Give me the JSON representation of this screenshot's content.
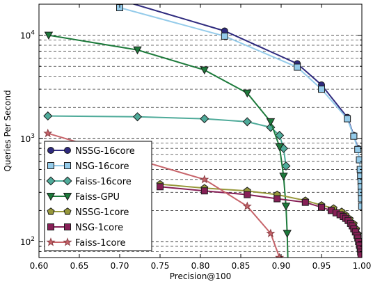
{
  "chart_data": {
    "type": "line",
    "xlabel": "Precision@100",
    "ylabel": "Queries Per Second",
    "xlim": [
      0.6,
      1.0
    ],
    "ylim": [
      70,
      20000
    ],
    "yscale": "log",
    "grid": "y-major-and-minor-dashed",
    "legend_position": "lower-left",
    "x_ticks": [
      "0.60",
      "0.65",
      "0.70",
      "0.75",
      "0.80",
      "0.85",
      "0.90",
      "0.95",
      "1.00"
    ],
    "y_ticks": [
      {
        "label_base": "10",
        "label_exp": "2",
        "value": 100
      },
      {
        "label_base": "10",
        "label_exp": "3",
        "value": 1000
      },
      {
        "label_base": "10",
        "label_exp": "4",
        "value": 10000
      }
    ],
    "series": [
      {
        "name": "NSSG-16core",
        "color": "#2e2a7e",
        "marker": "circle",
        "x": [
          0.7,
          0.83,
          0.92,
          0.95,
          0.982,
          0.99,
          0.995
        ],
        "y": [
          22000,
          11000,
          5300,
          3300,
          1600,
          1070,
          800
        ]
      },
      {
        "name": "NSG-16core",
        "color": "#94cbea",
        "marker": "square",
        "x": [
          0.7,
          0.83,
          0.92,
          0.95,
          0.982,
          0.99,
          0.995,
          0.997,
          0.998,
          0.9985,
          0.999,
          0.9992,
          0.9994,
          0.9996,
          0.9998
        ],
        "y": [
          18500,
          9800,
          4900,
          3000,
          1550,
          1050,
          780,
          620,
          500,
          430,
          380,
          340,
          300,
          260,
          220
        ]
      },
      {
        "name": "Faiss-16core",
        "color": "#4fab9a",
        "marker": "diamond",
        "x": [
          0.611,
          0.722,
          0.805,
          0.858,
          0.887,
          0.898,
          0.903,
          0.906
        ],
        "y": [
          1650,
          1620,
          1550,
          1450,
          1280,
          1070,
          800,
          540
        ]
      },
      {
        "name": "Faiss-GPU",
        "color": "#1d7a3b",
        "marker": "triangle-down",
        "x": [
          0.612,
          0.722,
          0.805,
          0.858,
          0.887,
          0.898,
          0.903,
          0.906,
          0.9075,
          0.9085
        ],
        "y": [
          10000,
          7200,
          4600,
          2750,
          1450,
          830,
          430,
          220,
          120,
          60
        ]
      },
      {
        "name": "NSSG-1core",
        "color": "#97983b",
        "marker": "pentagon",
        "x": [
          0.75,
          0.805,
          0.858,
          0.895,
          0.93,
          0.95,
          0.965,
          0.975,
          0.98,
          0.985,
          0.99,
          0.993,
          0.995,
          0.997
        ],
        "y": [
          360,
          330,
          310,
          285,
          250,
          225,
          210,
          195,
          180,
          165,
          148,
          132,
          118,
          100
        ]
      },
      {
        "name": "NSG-1core",
        "color": "#861f56",
        "marker": "square",
        "x": [
          0.75,
          0.805,
          0.858,
          0.895,
          0.93,
          0.95,
          0.962,
          0.968,
          0.973,
          0.977,
          0.98,
          0.983,
          0.986,
          0.988,
          0.99,
          0.992,
          0.994,
          0.995,
          0.996,
          0.997,
          0.998,
          0.9985,
          0.999
        ],
        "y": [
          340,
          310,
          285,
          260,
          240,
          215,
          200,
          190,
          182,
          175,
          168,
          160,
          150,
          142,
          133,
          124,
          115,
          108,
          100,
          92,
          85,
          79,
          74
        ]
      },
      {
        "name": "Faiss-1core",
        "color": "#c7646a",
        "marker": "star",
        "x": [
          0.611,
          0.722,
          0.805,
          0.858,
          0.887,
          0.898
        ],
        "y": [
          1120,
          620,
          400,
          220,
          120,
          70
        ]
      }
    ]
  }
}
